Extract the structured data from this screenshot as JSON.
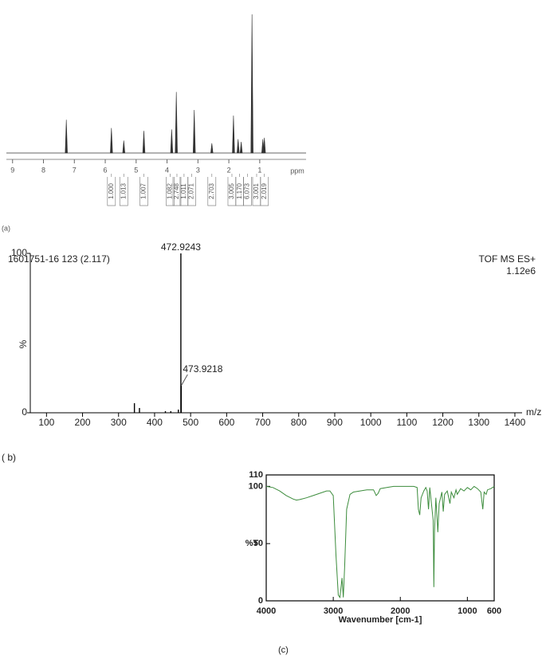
{
  "chart_data": [
    {
      "type": "nmr",
      "panel_label": "(a)",
      "x_label": "ppm",
      "x": [
        7.26,
        5.8,
        5.4,
        4.75,
        3.85,
        3.7,
        3.12,
        2.55,
        1.85,
        1.7,
        1.6,
        1.25,
        0.9,
        0.85
      ],
      "values": [
        24,
        18,
        9,
        16,
        17,
        44,
        31,
        7,
        27,
        10,
        8,
        100,
        10,
        11
      ],
      "color": "#333333",
      "xlim": [
        9.2,
        -0.5
      ],
      "xticks": [
        9,
        8,
        7,
        6,
        5,
        4,
        3,
        2,
        1
      ],
      "ylim": [
        0,
        100
      ],
      "integrals": [
        {
          "x": 5.8,
          "label": "1.000"
        },
        {
          "x": 5.4,
          "label": "1.013"
        },
        {
          "x": 4.75,
          "label": "1.007"
        },
        {
          "x": 3.9,
          "label": "1.082"
        },
        {
          "x": 3.68,
          "label": "2.748"
        },
        {
          "x": 3.45,
          "label": "1.011"
        },
        {
          "x": 3.2,
          "label": "2.071"
        },
        {
          "x": 2.55,
          "label": "2.703"
        },
        {
          "x": 1.9,
          "label": "3.005"
        },
        {
          "x": 1.65,
          "label": "1.170"
        },
        {
          "x": 1.4,
          "label": "6.073"
        },
        {
          "x": 1.1,
          "label": "3.001"
        },
        {
          "x": 0.85,
          "label": "2.019"
        }
      ]
    },
    {
      "type": "stem",
      "panel_label": "( b)",
      "title": "1601751-16 123 (2.117)",
      "instrument": "TOF MS ES+",
      "scale": "1.12e6",
      "x_label": "m/z",
      "y_label": "%",
      "x": [
        344,
        358,
        430,
        445,
        466,
        472.9243,
        473.9218
      ],
      "values": [
        6,
        3,
        1,
        1,
        2,
        100,
        17
      ],
      "x_labels": [
        null,
        null,
        null,
        null,
        null,
        "472.9243",
        "473.9218"
      ],
      "color": "#000000",
      "xlim": [
        55,
        1420
      ],
      "xticks": [
        100,
        200,
        300,
        400,
        500,
        600,
        700,
        800,
        900,
        1000,
        1100,
        1200,
        1300,
        1400
      ],
      "ylim": [
        0,
        100
      ],
      "yticks": [
        0,
        100
      ]
    },
    {
      "type": "line",
      "panel_label": "(c)",
      "x_label": "Wavenumber [cm-1]",
      "y_label": "%T",
      "series": [
        {
          "name": "IR",
          "color": "#3c8c3c",
          "x": [
            4000,
            3900,
            3800,
            3700,
            3600,
            3550,
            3500,
            3400,
            3300,
            3200,
            3100,
            3050,
            3000,
            2960,
            2925,
            2900,
            2870,
            2850,
            2830,
            2800,
            2750,
            2700,
            2600,
            2500,
            2400,
            2360,
            2330,
            2300,
            2200,
            2100,
            2000,
            1900,
            1800,
            1750,
            1730,
            1710,
            1690,
            1650,
            1620,
            1600,
            1580,
            1560,
            1510,
            1500,
            1490,
            1470,
            1460,
            1440,
            1420,
            1380,
            1360,
            1340,
            1300,
            1260,
            1240,
            1200,
            1170,
            1150,
            1100,
            1050,
            1000,
            950,
            900,
            850,
            800,
            770,
            750,
            720,
            700,
            650,
            600
          ],
          "values": [
            100,
            99,
            96,
            92,
            89,
            88,
            88.5,
            90,
            92,
            94,
            96,
            96,
            92,
            40,
            5,
            3,
            20,
            3,
            30,
            80,
            93,
            95,
            96,
            97,
            97,
            92,
            94,
            98,
            99,
            100,
            100,
            100,
            100,
            99,
            80,
            75,
            90,
            96,
            99,
            96,
            80,
            99,
            70,
            12,
            60,
            90,
            80,
            60,
            85,
            95,
            78,
            93,
            96,
            85,
            95,
            90,
            97,
            93,
            98,
            96,
            99,
            97,
            100,
            98,
            95,
            80,
            95,
            93,
            97,
            98,
            100
          ]
        }
      ],
      "xlim": [
        4000,
        600
      ],
      "xticks": [
        4000,
        3000,
        2000,
        1000,
        600
      ],
      "ylim": [
        0,
        110
      ],
      "yticks": [
        0,
        50,
        100,
        110
      ]
    }
  ]
}
